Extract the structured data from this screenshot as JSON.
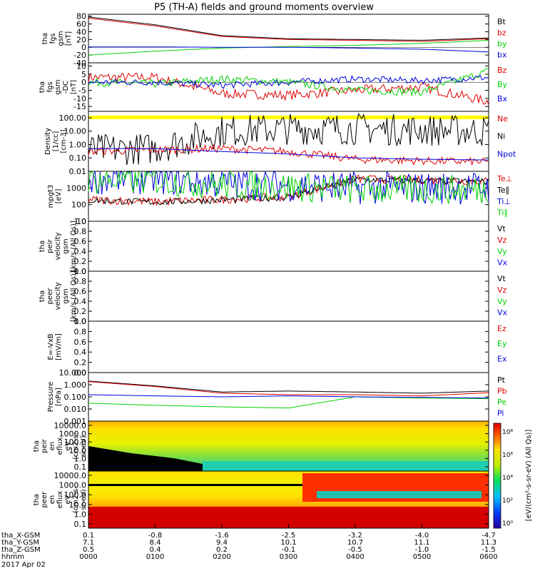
{
  "title": "P5 (TH-A) fields and ground moments overview",
  "date": "2017 Apr 02",
  "colors": {
    "black": "#000000",
    "red": "#e00000",
    "green": "#00d000",
    "blue": "#0000e0",
    "yellow": "#ffff00"
  },
  "panels": [
    {
      "id": "fgs-btot",
      "ylabel": [
        "tha",
        "fgs",
        "gsm",
        "[nT]"
      ],
      "ticks": [
        "80",
        "60",
        "40",
        "20",
        "0",
        "-20",
        "-40"
      ],
      "ylim": [
        -40,
        85
      ],
      "legend": [
        {
          "t": "Bt",
          "c": "black"
        },
        {
          "t": "bz",
          "c": "red"
        },
        {
          "t": "by",
          "c": "green"
        },
        {
          "t": "bx",
          "c": "blue"
        }
      ]
    },
    {
      "id": "fgs-dc",
      "ylabel": [
        "tha",
        "fgs",
        "gsm",
        "-DC",
        "[nT]"
      ],
      "ticks": [
        "10",
        "5",
        "0",
        "-5",
        "-10",
        "-15"
      ],
      "ylim": [
        -18,
        12
      ],
      "legend": [
        {
          "t": "Bz",
          "c": "red"
        },
        {
          "t": "By",
          "c": "green"
        },
        {
          "t": "Bx",
          "c": "blue"
        }
      ]
    },
    {
      "id": "density",
      "ylabel": [
        "Density",
        "[1/cc]",
        "[cm-3]"
      ],
      "ticks": [
        "100.00",
        "10.00",
        "1.00",
        "0.10",
        "0.01"
      ],
      "ylim": [
        0.01,
        300
      ],
      "log": true,
      "legend": [
        {
          "t": "Ne",
          "c": "red"
        },
        {
          "t": "Ni",
          "c": "black"
        },
        {
          "t": "Npot",
          "c": "blue"
        }
      ]
    },
    {
      "id": "temperature",
      "ylabel": [
        "mpgt3",
        "[eV]"
      ],
      "ticks": [
        "1000",
        "100",
        "10"
      ],
      "ylim": [
        10,
        10000
      ],
      "log": true,
      "legend": [
        {
          "t": "Te⊥",
          "c": "red"
        },
        {
          "t": "Te∥",
          "c": "black"
        },
        {
          "t": "Ti⊥",
          "c": "blue"
        },
        {
          "t": "Ti∥",
          "c": "green"
        }
      ]
    },
    {
      "id": "peir-velocity",
      "ylabel": [
        "tha",
        "peir",
        "velocity",
        "gsm",
        "[km/s (All Qs)]"
      ],
      "ticks": [
        "1.0",
        "0.8",
        "0.6",
        "0.4",
        "0.2",
        "0.0"
      ],
      "ylim": [
        0,
        1
      ],
      "legend": [
        {
          "t": "Vt",
          "c": "black"
        },
        {
          "t": "Vz",
          "c": "red"
        },
        {
          "t": "Vy",
          "c": "green"
        },
        {
          "t": "Vx",
          "c": "blue"
        }
      ]
    },
    {
      "id": "peer-velocity",
      "ylabel": [
        "tha",
        "peer",
        "velocity",
        "gsm",
        "[km/s (All Qs)]"
      ],
      "ticks": [
        "1.0",
        "0.8",
        "0.6",
        "0.4",
        "0.2",
        "0.0"
      ],
      "ylim": [
        0,
        1
      ],
      "legend": [
        {
          "t": "Vt",
          "c": "black"
        },
        {
          "t": "Vz",
          "c": "red"
        },
        {
          "t": "Vy",
          "c": "green"
        },
        {
          "t": "Vx",
          "c": "blue"
        }
      ]
    },
    {
      "id": "e-field",
      "ylabel": [
        "E=-VxB",
        "[mV/m]"
      ],
      "ticks": [
        "1.0",
        "0.8",
        "0.6",
        "0.4",
        "0.2",
        "0.0"
      ],
      "ylim": [
        0,
        1
      ],
      "legend": [
        {
          "t": "Ez",
          "c": "red"
        },
        {
          "t": "Ey",
          "c": "green"
        },
        {
          "t": "Ex",
          "c": "blue"
        }
      ]
    },
    {
      "id": "pressure",
      "ylabel": [
        "Pressure",
        "[nPa]"
      ],
      "ticks": [
        "10.000",
        "1.000",
        "0.100",
        "0.010",
        "0.001"
      ],
      "ylim": [
        0.001,
        10
      ],
      "log": true,
      "legend": [
        {
          "t": "Pt",
          "c": "black"
        },
        {
          "t": "Pb",
          "c": "red"
        },
        {
          "t": "Pe",
          "c": "green"
        },
        {
          "t": "Pi",
          "c": "blue"
        }
      ]
    },
    {
      "id": "peir-spec",
      "ylabel": [
        "tha",
        "peir",
        "en",
        "eflux",
        "eV",
        "(cm2-s-",
        "sr-eV)"
      ],
      "ticks": [
        "10000.0",
        "1000.0",
        "100.0",
        "10.0",
        "1.0",
        "0.1"
      ]
    },
    {
      "id": "peer-spec",
      "ylabel": [
        "tha",
        "peer",
        "en",
        "eflux",
        "eV",
        "(cm2-s-",
        "sr-eV)"
      ],
      "ticks": [
        "10000.0",
        "1000.0",
        "100.0",
        "10.0",
        "1.0",
        "0.1"
      ]
    }
  ],
  "colorbar": {
    "ticks": [
      "10⁸",
      "10⁶",
      "10⁴",
      "10²",
      "10⁰"
    ],
    "label": "[eV/(cm²-s-sr-eV) (All Qs)]"
  },
  "xaxis": {
    "rows": [
      {
        "label": "tha_X-GSM",
        "values": [
          "0.1",
          "-0.8",
          "-1.6",
          "-2.5",
          "-3.2",
          "-4.0",
          "-4.7"
        ]
      },
      {
        "label": "tha_Y-GSM",
        "values": [
          "7.1",
          "8.4",
          "9.4",
          "10.1",
          "10.7",
          "11.1",
          "11.3"
        ]
      },
      {
        "label": "tha_Z-GSM",
        "values": [
          "0.5",
          "0.4",
          "0.2",
          "-0.1",
          "-0.5",
          "-1.0",
          "-1.5"
        ]
      },
      {
        "label": "hhmm",
        "values": [
          "0000",
          "0100",
          "0200",
          "0300",
          "0400",
          "0500",
          "0600"
        ]
      }
    ]
  },
  "chart_data": {
    "type": "line",
    "x_range": [
      "0000",
      "0600"
    ],
    "x_hours": [
      0,
      1,
      2,
      3,
      4,
      5,
      6
    ],
    "series": [
      {
        "name": "Bt",
        "panel": 0,
        "values": [
          78,
          58,
          30,
          22,
          20,
          18,
          24
        ]
      },
      {
        "name": "bz",
        "panel": 0,
        "values": [
          75,
          55,
          28,
          20,
          18,
          15,
          22
        ]
      },
      {
        "name": "by",
        "panel": 0,
        "values": [
          -20,
          -10,
          -2,
          2,
          5,
          10,
          18
        ]
      },
      {
        "name": "bx",
        "panel": 0,
        "values": [
          1,
          1,
          0,
          0,
          -2,
          -5,
          -12
        ]
      },
      {
        "name": "Bz",
        "panel": 1,
        "values": [
          3,
          3,
          -7,
          -8,
          -5,
          -3,
          -12
        ]
      },
      {
        "name": "By",
        "panel": 1,
        "values": [
          0,
          -1,
          2,
          0,
          -5,
          -6,
          7
        ]
      },
      {
        "name": "Bx",
        "panel": 1,
        "values": [
          0,
          0,
          -2,
          0,
          2,
          1,
          3
        ]
      },
      {
        "name": "Ni",
        "panel": 2,
        "values": [
          0.4,
          0.5,
          10,
          15,
          15,
          12,
          10
        ]
      },
      {
        "name": "Ne",
        "panel": 2,
        "values": [
          0.3,
          0.4,
          0.5,
          0.3,
          0.08,
          0.06,
          0.05
        ]
      },
      {
        "name": "Npot",
        "panel": 2,
        "values": [
          0.5,
          0.5,
          0.3,
          0.2,
          0.1,
          0.08,
          0.07
        ]
      },
      {
        "name": "Te⊥",
        "panel": 3,
        "values": [
          200,
          150,
          200,
          300,
          3500,
          3000,
          2500
        ]
      },
      {
        "name": "Te∥",
        "panel": 3,
        "values": [
          180,
          140,
          190,
          280,
          3200,
          2800,
          2400
        ]
      },
      {
        "name": "Ti⊥",
        "panel": 3,
        "values": [
          4000,
          4000,
          2000,
          1500,
          1000,
          1000,
          1000
        ]
      },
      {
        "name": "Ti∥",
        "panel": 3,
        "values": [
          3000,
          3000,
          1500,
          1200,
          800,
          800,
          800
        ]
      },
      {
        "name": "Pt",
        "panel": 7,
        "values": [
          2.0,
          0.8,
          0.25,
          0.3,
          0.25,
          0.2,
          0.3
        ]
      },
      {
        "name": "Pb",
        "panel": 7,
        "values": [
          1.8,
          0.7,
          0.2,
          0.15,
          0.15,
          0.12,
          0.22
        ]
      },
      {
        "name": "Pe",
        "panel": 7,
        "values": [
          0.03,
          0.02,
          0.015,
          0.012,
          0.1,
          0.08,
          0.07
        ]
      },
      {
        "name": "Pi",
        "panel": 7,
        "values": [
          0.15,
          0.12,
          0.1,
          0.12,
          0.1,
          0.09,
          0.08
        ]
      }
    ]
  }
}
